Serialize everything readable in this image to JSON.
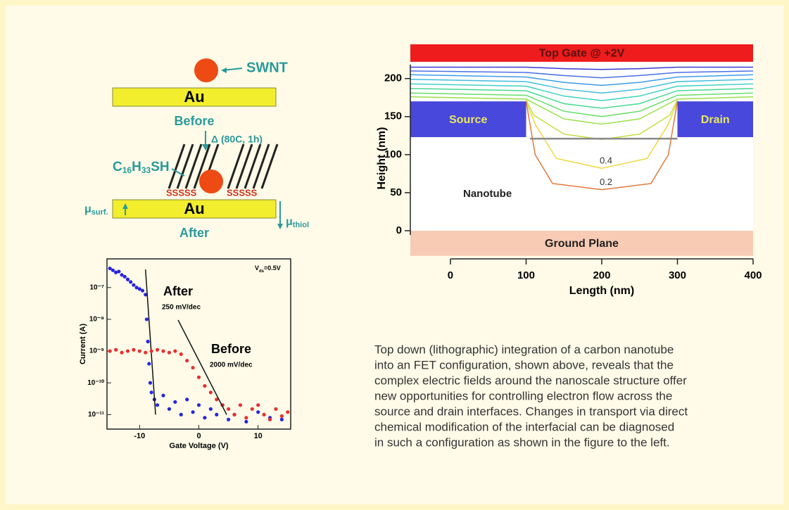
{
  "diagram": {
    "swnt": "SWNT",
    "au_before": "Au",
    "before": "Before",
    "treatment": "Δ (80C, 1h)",
    "thiol": [
      "C",
      "16",
      "H",
      "33",
      "SH"
    ],
    "sulfur_left": "SSSSS",
    "sulfur_right": "SSSSS",
    "au_after": "Au",
    "after": "After",
    "mu_surf": [
      "μ",
      "surf."
    ],
    "mu_thiol": [
      "μ",
      "thiol"
    ]
  },
  "chart_data": [
    {
      "type": "scatter",
      "xlabel": "Gate Voltage (V)",
      "ylabel": "Current (A)",
      "log_y": true,
      "xlim": [
        -15.5,
        15.5
      ],
      "xticks": [
        -10,
        0,
        10
      ],
      "ylim": [
        3.5e-12,
        8e-07
      ],
      "yticks": [
        {
          "value": 1e-07,
          "label": "10⁻⁷"
        },
        {
          "value": 1e-08,
          "label": "10⁻⁸"
        },
        {
          "value": 1e-09,
          "label": "10⁻⁹"
        },
        {
          "value": 1e-10,
          "label": "10⁻¹⁰"
        },
        {
          "value": 1e-11,
          "label": "10⁻¹¹"
        }
      ],
      "annotation": [
        "V",
        "ds",
        "=0.5V"
      ],
      "series": [
        {
          "name": "After",
          "color": "#2626e0",
          "slope_label": "250 mV/dec",
          "fit_x": [
            -9,
            -7.3
          ],
          "fit_y": [
            3.7e-07,
            1e-11
          ],
          "x": [
            -15,
            -14.5,
            -14,
            -13.5,
            -13,
            -12.5,
            -12,
            -11.5,
            -11,
            -10.5,
            -10,
            -9.5,
            -9,
            -8.8,
            -8.6,
            -8.4,
            -8.2,
            -8,
            -7.5,
            -7,
            -6,
            -5,
            -4,
            -3,
            -2,
            -1,
            0,
            1,
            2,
            3,
            4,
            5,
            6,
            8,
            10,
            12,
            14
          ],
          "values": [
            4e-07,
            3.5e-07,
            3e-07,
            3.2e-07,
            2.5e-07,
            2.2e-07,
            1.8e-07,
            1.5e-07,
            1.2e-07,
            1e-07,
            9e-08,
            8e-08,
            6e-08,
            1e-08,
            2e-09,
            4e-10,
            1e-10,
            5e-11,
            3e-11,
            2e-11,
            4e-11,
            1.5e-11,
            2.5e-11,
            1e-11,
            3e-11,
            1.2e-11,
            2e-11,
            8e-12,
            1.5e-11,
            1e-11,
            2e-11,
            7e-12,
            1e-11,
            6e-12,
            1.2e-11,
            8e-12,
            7e-12
          ]
        },
        {
          "name": "Before",
          "color": "#e83030",
          "slope_label": "2000 mV/dec",
          "fit_x": [
            -3.5,
            4.7
          ],
          "fit_y": [
            9.5e-09,
            1e-11
          ],
          "x": [
            -15,
            -14,
            -13,
            -12,
            -11,
            -10,
            -9,
            -8,
            -7,
            -6,
            -5,
            -4,
            -3,
            -2,
            -1,
            0,
            1,
            2,
            3,
            4,
            5,
            6,
            7,
            8,
            9,
            10,
            11,
            12,
            13,
            14,
            15
          ],
          "values": [
            1e-09,
            1.1e-09,
            9e-10,
            1e-09,
            1.1e-09,
            1e-09,
            9e-10,
            1e-09,
            1.1e-09,
            1e-09,
            9e-10,
            1e-09,
            8e-10,
            5e-10,
            3e-10,
            1.5e-10,
            8e-11,
            5e-11,
            3e-11,
            2e-11,
            1.5e-11,
            1e-11,
            2e-11,
            8e-12,
            1.5e-11,
            2e-11,
            1e-11,
            7e-12,
            1.5e-11,
            9e-12,
            1.2e-11
          ]
        }
      ]
    },
    {
      "type": "contour",
      "xlabel": "Length (nm)",
      "ylabel": "Height (nm)",
      "xlim": [
        -53,
        400
      ],
      "ylim": [
        -37,
        245
      ],
      "xticks": [
        0,
        100,
        200,
        300,
        400
      ],
      "yticks": [
        0,
        50,
        100,
        150,
        200
      ],
      "regions": [
        {
          "label": "Top Gate @ +2V",
          "x": [
            -53,
            400
          ],
          "y": [
            222,
            245
          ],
          "color": "#ee1c1c",
          "label_color": "#5a1010"
        },
        {
          "label": "Source",
          "x": [
            -53,
            100
          ],
          "y": [
            123,
            170
          ],
          "color": "#4848dc",
          "label_color": "#e8e860"
        },
        {
          "label": "Drain",
          "x": [
            300,
            400
          ],
          "y": [
            123,
            170
          ],
          "color": "#4848dc",
          "label_color": "#e8e860"
        },
        {
          "label": "Ground Plane",
          "x": [
            -53,
            400
          ],
          "y": [
            -33,
            0
          ],
          "color": "#f8cbb4",
          "label_color": "#222222"
        }
      ],
      "nanotube": {
        "label": "Nanotube",
        "x": [
          105,
          300
        ],
        "y": [
          121,
          121
        ],
        "color": "#888888"
      },
      "contours": [
        {
          "color": "#3a3ad0",
          "x": [
            -53,
            100,
            150,
            200,
            250,
            300,
            400
          ],
          "y": [
            215,
            215,
            213,
            212,
            213,
            215,
            215
          ]
        },
        {
          "color": "#4a70e0",
          "x": [
            -53,
            100,
            150,
            200,
            250,
            300,
            400
          ],
          "y": [
            210,
            208,
            204,
            201,
            204,
            208,
            210
          ]
        },
        {
          "color": "#3c9ce8",
          "x": [
            -53,
            100,
            150,
            200,
            250,
            300,
            400
          ],
          "y": [
            205,
            202,
            195,
            191,
            195,
            202,
            205
          ]
        },
        {
          "color": "#40bce0",
          "x": [
            -53,
            100,
            150,
            200,
            250,
            300,
            400
          ],
          "y": [
            199,
            196,
            186,
            181,
            186,
            196,
            199
          ]
        },
        {
          "color": "#40d0c4",
          "x": [
            -53,
            100,
            150,
            200,
            250,
            300,
            400
          ],
          "y": [
            193,
            190,
            177,
            171,
            177,
            190,
            193
          ]
        },
        {
          "color": "#48d894",
          "x": [
            -53,
            100,
            150,
            200,
            250,
            300,
            400
          ],
          "y": [
            187,
            184,
            167,
            161,
            167,
            184,
            187
          ]
        },
        {
          "color": "#68de68",
          "x": [
            -53,
            100,
            150,
            200,
            250,
            300,
            400
          ],
          "y": [
            181,
            178,
            157,
            150,
            157,
            178,
            181
          ]
        },
        {
          "color": "#98e048",
          "x": [
            -53,
            100,
            150,
            200,
            250,
            300,
            400
          ],
          "y": [
            176,
            173,
            147,
            140,
            147,
            173,
            176
          ]
        },
        {
          "color": "#c0e040",
          "x": [
            100,
            110,
            150,
            200,
            250,
            290,
            300
          ],
          "y": [
            172,
            152,
            127,
            120,
            127,
            152,
            172
          ]
        },
        {
          "color": "#f0d840",
          "x": [
            100,
            112,
            140,
            200,
            260,
            288,
            300
          ],
          "y": [
            170,
            140,
            95,
            82,
            95,
            140,
            170
          ],
          "label": "0.4"
        },
        {
          "color": "#e07a3c",
          "x": [
            100,
            112,
            135,
            200,
            265,
            288,
            300
          ],
          "y": [
            170,
            100,
            62,
            54,
            62,
            100,
            170
          ],
          "label": "0.2"
        }
      ]
    }
  ],
  "caption": [
    "Top down (lithographic) integration of a carbon nanotube",
    "into an FET configuration, shown above, reveals that the",
    "complex electric fields around the nanoscale structure offer",
    "new opportunities for controlling electron flow across the",
    "source and drain interfaces. Changes in transport via direct",
    "chemical modification of the interfacial can be diagnosed",
    "in such a configuration as shown in the figure to the left."
  ]
}
